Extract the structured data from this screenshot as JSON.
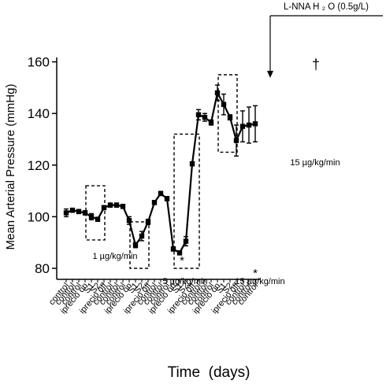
{
  "chart_data": {
    "type": "line",
    "title": "",
    "xlabel": "Time  (days)",
    "ylabel": "Mean Arterial Pressure (mmHg)",
    "ylim": [
      76,
      168
    ],
    "yticks": [
      80,
      100,
      120,
      140,
      160
    ],
    "categories": [
      "control",
      "control",
      "control",
      "iprecio on",
      "S1",
      "S2",
      "iprecio off",
      "control",
      "control",
      "control",
      "iprecio on",
      "S1",
      "S2",
      "iprecio off",
      "control",
      "control",
      "control",
      "iprecio on",
      "S1",
      "S2",
      "iprecio off",
      "control",
      "control",
      "control",
      "iprecio on",
      "S1",
      "S2",
      "iprecio off",
      "control",
      "control",
      "control"
    ],
    "series": [
      {
        "values": [
          101.5,
          102.5,
          102,
          101.5,
          100,
          99,
          103.5,
          104.5,
          104.5,
          104,
          98.5,
          89,
          92.5,
          98,
          105.5,
          109,
          107,
          87.5,
          86,
          90.5,
          120.5,
          139.5,
          138.5,
          136.5,
          148,
          143.5,
          138.5,
          129.5,
          135,
          135.5,
          136
        ],
        "errors": [
          1.5,
          0.8,
          0.8,
          0.8,
          1.2,
          0.8,
          0.8,
          0.8,
          0.8,
          0.8,
          1.5,
          1,
          1.8,
          1,
          0.8,
          0.8,
          0.8,
          0.8,
          0.8,
          1.8,
          0.8,
          2,
          1.5,
          1,
          3,
          4,
          1,
          6,
          6,
          7,
          7
        ]
      }
    ],
    "annotations": {
      "treatment_label": "L-NNA H ₂ O (0.5g/L)",
      "dose_labels": [
        "1 µg/kg/min",
        "5 µg/kg/min",
        "15 µg/kg/min",
        "15 µg/kg/min"
      ],
      "markers": [
        "*",
        "*",
        "†"
      ]
    },
    "grid": false,
    "legend": "none"
  }
}
